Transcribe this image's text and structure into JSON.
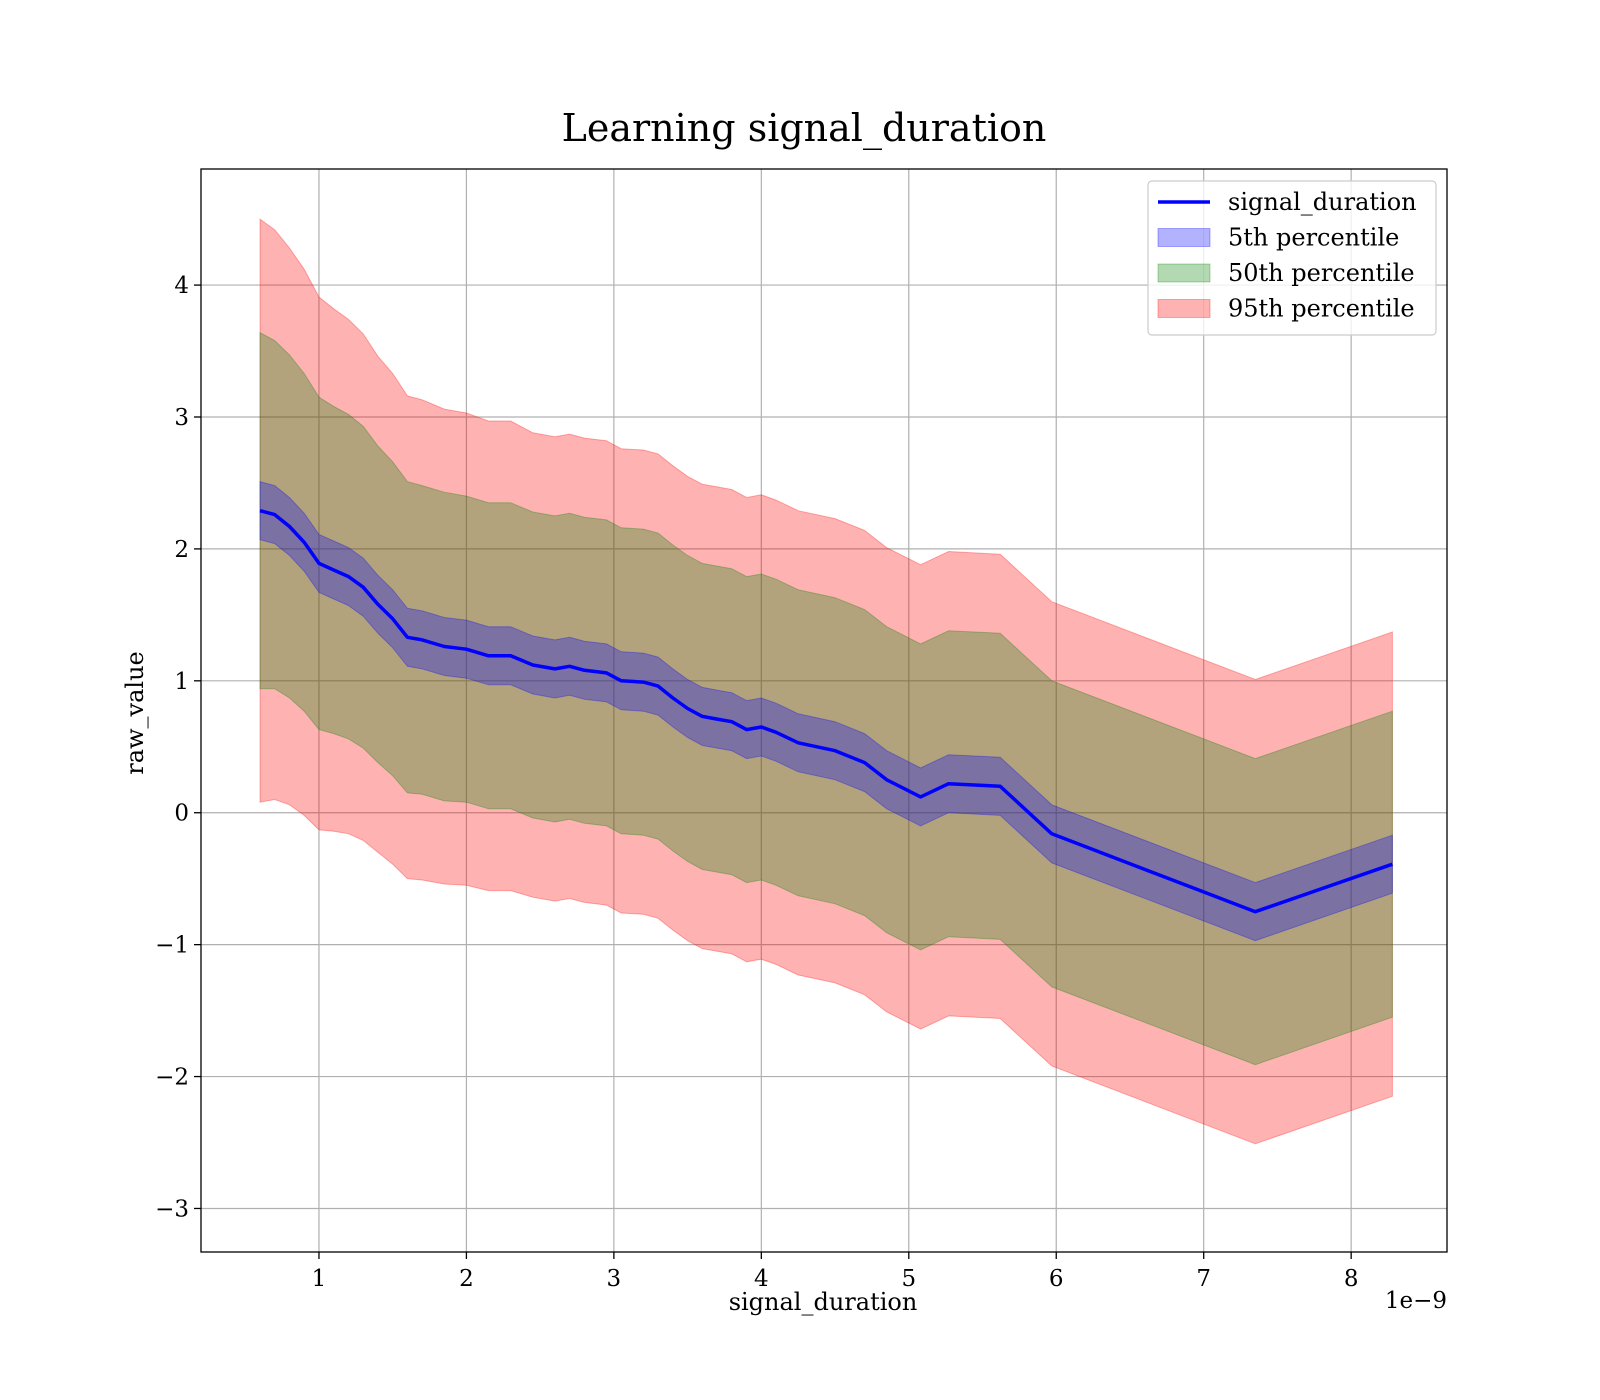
{
  "chart_data": {
    "type": "line",
    "title": "Learning signal_duration",
    "xlabel": "signal_duration",
    "ylabel": "raw_value",
    "x_offset_label": "1e−9",
    "xlim": [
      0.2,
      8.65
    ],
    "ylim": [
      -3.33,
      4.88
    ],
    "xticks": [
      1,
      2,
      3,
      4,
      5,
      6,
      7,
      8
    ],
    "xtick_labels": [
      "1",
      "2",
      "3",
      "4",
      "5",
      "6",
      "7",
      "8"
    ],
    "yticks": [
      -3,
      -2,
      -1,
      0,
      1,
      2,
      3,
      4
    ],
    "ytick_labels": [
      "−3",
      "−2",
      "−1",
      "0",
      "1",
      "2",
      "3",
      "4"
    ],
    "grid": true,
    "legend_position": "top-right",
    "x": [
      0.6,
      0.7,
      0.8,
      0.9,
      1.0,
      1.1,
      1.2,
      1.3,
      1.4,
      1.5,
      1.6,
      1.7,
      1.85,
      2.0,
      2.15,
      2.3,
      2.45,
      2.6,
      2.7,
      2.8,
      2.95,
      3.05,
      3.2,
      3.3,
      3.4,
      3.5,
      3.6,
      3.7,
      3.8,
      3.9,
      4.0,
      4.1,
      4.25,
      4.5,
      4.7,
      4.85,
      5.08,
      5.27,
      5.62,
      5.97,
      7.35,
      8.28
    ],
    "series": [
      {
        "name": "signal_duration",
        "color": "#0000ff",
        "values": [
          2.29,
          2.26,
          2.17,
          2.05,
          1.89,
          1.84,
          1.79,
          1.71,
          1.58,
          1.47,
          1.33,
          1.31,
          1.26,
          1.24,
          1.19,
          1.19,
          1.12,
          1.09,
          1.11,
          1.08,
          1.06,
          1.0,
          0.99,
          0.96,
          0.87,
          0.79,
          0.73,
          0.71,
          0.69,
          0.63,
          0.65,
          0.61,
          0.53,
          0.47,
          0.38,
          0.25,
          0.12,
          0.22,
          0.2,
          -0.16,
          -0.75,
          -0.39
        ]
      }
    ],
    "bands": [
      {
        "name": "95th percentile",
        "color": "#ff0000",
        "opacity": 0.3,
        "half_width": [
          2.21,
          2.16,
          2.11,
          2.07,
          2.02,
          1.98,
          1.95,
          1.92,
          1.88,
          1.86,
          1.83,
          1.82,
          1.8,
          1.79,
          1.78,
          1.78,
          1.76,
          1.76,
          1.76,
          1.76,
          1.76,
          1.76,
          1.76,
          1.76,
          1.76,
          1.76,
          1.76,
          1.76,
          1.76,
          1.76,
          1.76,
          1.76,
          1.76,
          1.76,
          1.76,
          1.76,
          1.76,
          1.76,
          1.76,
          1.76,
          1.76,
          1.76
        ]
      },
      {
        "name": "50th percentile",
        "color": "#008000",
        "opacity": 0.3,
        "half_width": [
          1.35,
          1.32,
          1.3,
          1.28,
          1.26,
          1.24,
          1.23,
          1.22,
          1.2,
          1.19,
          1.18,
          1.17,
          1.17,
          1.16,
          1.16,
          1.16,
          1.16,
          1.16,
          1.16,
          1.16,
          1.16,
          1.16,
          1.16,
          1.16,
          1.16,
          1.16,
          1.16,
          1.16,
          1.16,
          1.16,
          1.16,
          1.16,
          1.16,
          1.16,
          1.16,
          1.16,
          1.16,
          1.16,
          1.16,
          1.16,
          1.16,
          1.16
        ]
      },
      {
        "name": "5th percentile",
        "color": "#0000ff",
        "opacity": 0.3,
        "half_width": [
          0.22,
          0.22,
          0.22,
          0.22,
          0.22,
          0.22,
          0.22,
          0.22,
          0.22,
          0.22,
          0.22,
          0.22,
          0.22,
          0.22,
          0.22,
          0.22,
          0.22,
          0.22,
          0.22,
          0.22,
          0.22,
          0.22,
          0.22,
          0.22,
          0.22,
          0.22,
          0.22,
          0.22,
          0.22,
          0.22,
          0.22,
          0.22,
          0.22,
          0.22,
          0.22,
          0.22,
          0.22,
          0.22,
          0.22,
          0.22,
          0.22,
          0.22
        ]
      }
    ],
    "legend": [
      {
        "label": "signal_duration",
        "kind": "line",
        "color": "#0000ff"
      },
      {
        "label": "5th percentile",
        "kind": "patch",
        "color": "#0000ff"
      },
      {
        "label": "50th percentile",
        "kind": "patch",
        "color": "#008000"
      },
      {
        "label": "95th percentile",
        "kind": "patch",
        "color": "#ff0000"
      }
    ]
  }
}
